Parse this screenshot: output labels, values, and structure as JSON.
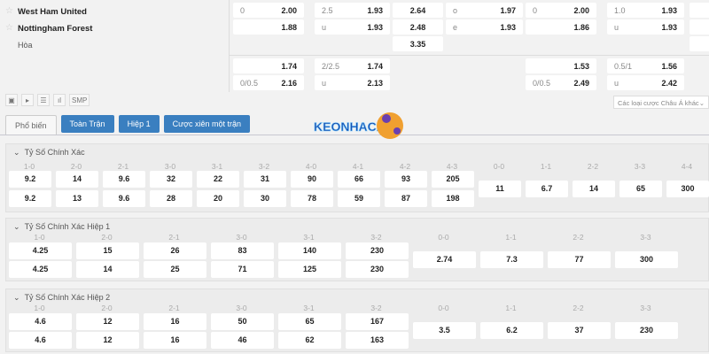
{
  "match": {
    "home": "West Ham United",
    "away": "Nottingham Forest",
    "draw": "Hòa"
  },
  "odds": {
    "r1": [
      [
        "0",
        "2.00"
      ],
      [
        "2.5",
        "1.93"
      ],
      [
        "",
        "2.64"
      ],
      [
        "o",
        "1.97"
      ],
      [
        "0",
        "2.00"
      ],
      [
        "1.0",
        "1.93"
      ]
    ],
    "r2": [
      [
        "",
        "1.88"
      ],
      [
        "u",
        "1.93"
      ],
      [
        "",
        "2.48"
      ],
      [
        "e",
        "1.93"
      ],
      [
        "",
        "1.86"
      ],
      [
        "u",
        "1.93"
      ]
    ],
    "r3": [
      [
        "",
        "3.35"
      ]
    ],
    "r4": [
      [
        "",
        "1.74"
      ],
      [
        "2/2.5",
        "1.74"
      ],
      [
        "",
        "1.53"
      ],
      [
        "0.5/1",
        "1.56"
      ]
    ],
    "r5": [
      [
        "0/0.5",
        "2.16"
      ],
      [
        "u",
        "2.13"
      ],
      [
        "0/0.5",
        "2.49"
      ],
      [
        "u",
        "2.42"
      ]
    ]
  },
  "toolbar": {
    "smp": "SMP",
    "select": "Các loại cược Châu Á khác"
  },
  "tabs": [
    "Phổ biến",
    "Toàn Trận",
    "Hiệp 1",
    "Cược xiên một trận"
  ],
  "logo": "KEONHACAI88",
  "sections": [
    {
      "title": "Tỷ Số Chính Xác",
      "scores": [
        "1-0",
        "2-0",
        "2-1",
        "3-0",
        "3-1",
        "3-2",
        "4-0",
        "4-1",
        "4-2",
        "4-3"
      ],
      "home": [
        "9.2",
        "14",
        "9.6",
        "32",
        "22",
        "31",
        "90",
        "66",
        "93",
        "205"
      ],
      "away": [
        "9.2",
        "13",
        "9.6",
        "28",
        "20",
        "30",
        "78",
        "59",
        "87",
        "198"
      ],
      "draws": [
        "0-0",
        "1-1",
        "2-2",
        "3-3",
        "4-4"
      ],
      "draw_odds": [
        "11",
        "6.7",
        "14",
        "65",
        "300"
      ]
    },
    {
      "title": "Tỷ Số Chính Xác Hiệp 1",
      "scores": [
        "1-0",
        "2-0",
        "2-1",
        "3-0",
        "3-1",
        "3-2"
      ],
      "home": [
        "4.25",
        "15",
        "26",
        "83",
        "140",
        "230"
      ],
      "away": [
        "4.25",
        "14",
        "25",
        "71",
        "125",
        "230"
      ],
      "draws": [
        "0-0",
        "1-1",
        "2-2",
        "3-3"
      ],
      "draw_odds": [
        "2.74",
        "7.3",
        "77",
        "300"
      ]
    },
    {
      "title": "Tỷ Số Chính Xác Hiệp 2",
      "scores": [
        "1-0",
        "2-0",
        "2-1",
        "3-0",
        "3-1",
        "3-2"
      ],
      "home": [
        "4.6",
        "12",
        "16",
        "50",
        "65",
        "167"
      ],
      "away": [
        "4.6",
        "12",
        "16",
        "46",
        "62",
        "163"
      ],
      "draws": [
        "0-0",
        "1-1",
        "2-2",
        "3-3"
      ],
      "draw_odds": [
        "3.5",
        "6.2",
        "37",
        "230"
      ]
    }
  ]
}
